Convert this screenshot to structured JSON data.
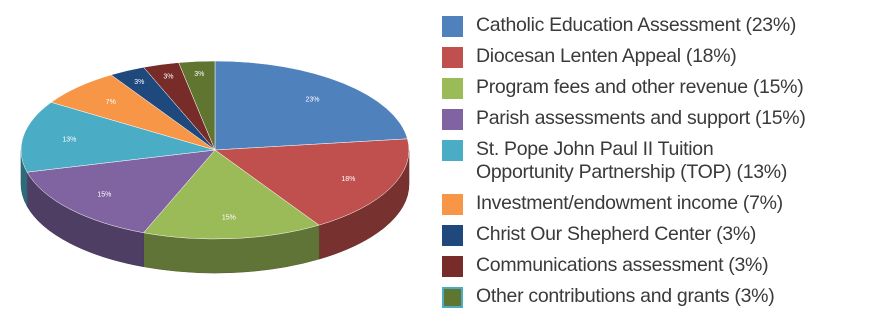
{
  "chart_data": {
    "type": "pie",
    "title": "",
    "legend_position": "right",
    "slices": [
      {
        "label": "Catholic Education Assessment (23%)",
        "value": 23,
        "data_label": "23%",
        "color": "#4f81bd"
      },
      {
        "label": "Diocesan Lenten Appeal (18%)",
        "value": 18,
        "data_label": "18%",
        "color": "#c0504d"
      },
      {
        "label": "Program fees and other revenue (15%)",
        "value": 15,
        "data_label": "15%",
        "color": "#9bbb59"
      },
      {
        "label": "Parish assessments and support (15%)",
        "value": 15,
        "data_label": "15%",
        "color": "#8064a2"
      },
      {
        "label": "St. Pope John Paul II Tuition Opportunity Partnership (TOP) (13%)",
        "label_lines": [
          "St. Pope John Paul II Tuition",
          "Opportunity Partnership (TOP) (13%)"
        ],
        "value": 13,
        "data_label": "13%",
        "color": "#4bacc6"
      },
      {
        "label": "Investment/endowment income (7%)",
        "value": 7,
        "data_label": "7%",
        "color": "#f79646"
      },
      {
        "label": "Christ Our Shepherd Center (3%)",
        "value": 3,
        "data_label": "3%",
        "color": "#1f497d"
      },
      {
        "label": "Communications assessment (3%)",
        "value": 3,
        "data_label": "3%",
        "color": "#772c2a"
      },
      {
        "label": "Other contributions and grants (3%)",
        "value": 3,
        "data_label": "3%",
        "color": "#5f7530"
      }
    ]
  }
}
